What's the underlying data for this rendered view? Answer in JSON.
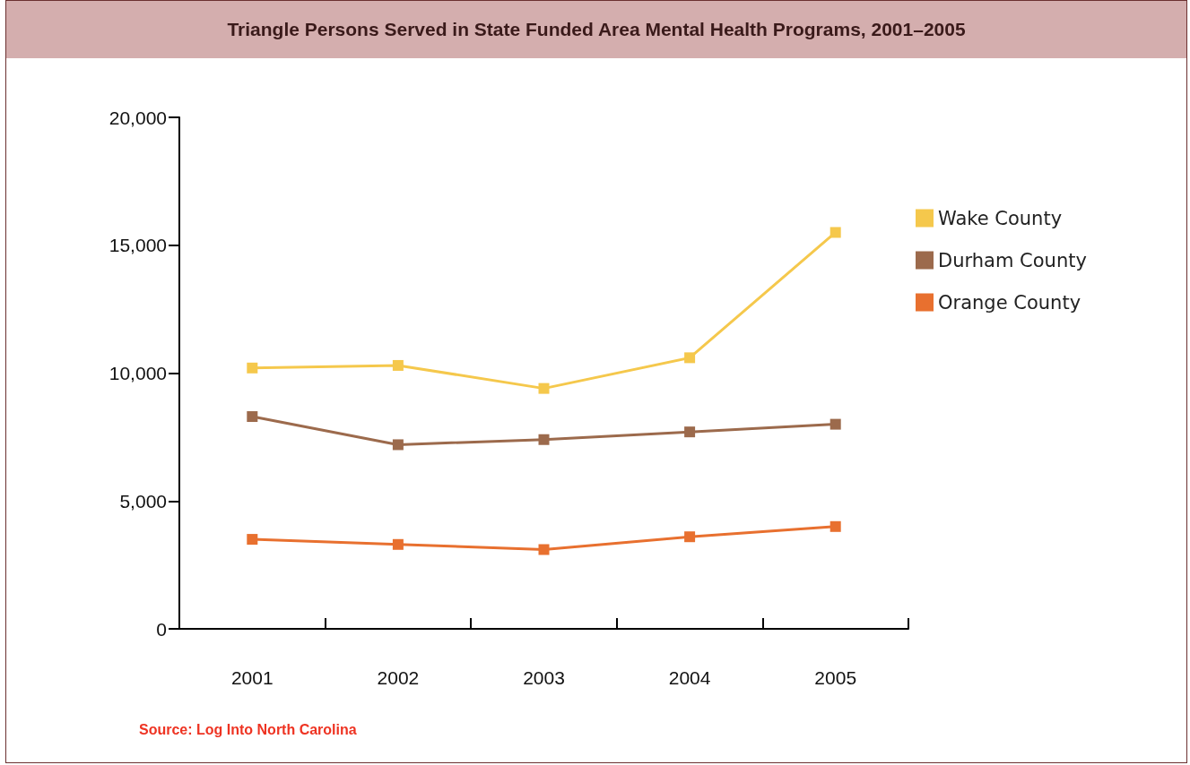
{
  "chart_data": {
    "type": "line",
    "title": "Triangle Persons Served in State Funded Area Mental Health Programs, 2001–2005",
    "categories": [
      "2001",
      "2002",
      "2003",
      "2004",
      "2005"
    ],
    "series": [
      {
        "name": "Wake County",
        "color": "#f5c84c",
        "values": [
          10200,
          10300,
          9400,
          10600,
          15500
        ]
      },
      {
        "name": "Durham County",
        "color": "#9c6a4c",
        "values": [
          8300,
          7200,
          7400,
          7700,
          8000
        ]
      },
      {
        "name": "Orange County",
        "color": "#e8702f",
        "values": [
          3500,
          3300,
          3100,
          3600,
          4000
        ]
      }
    ],
    "ylim": [
      0,
      20000
    ],
    "yticks": [
      0,
      {
        "value": 5000,
        "label": "5,000"
      },
      {
        "value": 10000,
        "label": "10,000"
      },
      {
        "value": 15000,
        "label": "15,000"
      },
      {
        "value": 20000,
        "label": "20,000"
      }
    ],
    "grid": false,
    "legend": "right",
    "marker": "square",
    "line_style": "solid",
    "annotations": [
      "Source: Log Into North Carolina"
    ]
  }
}
